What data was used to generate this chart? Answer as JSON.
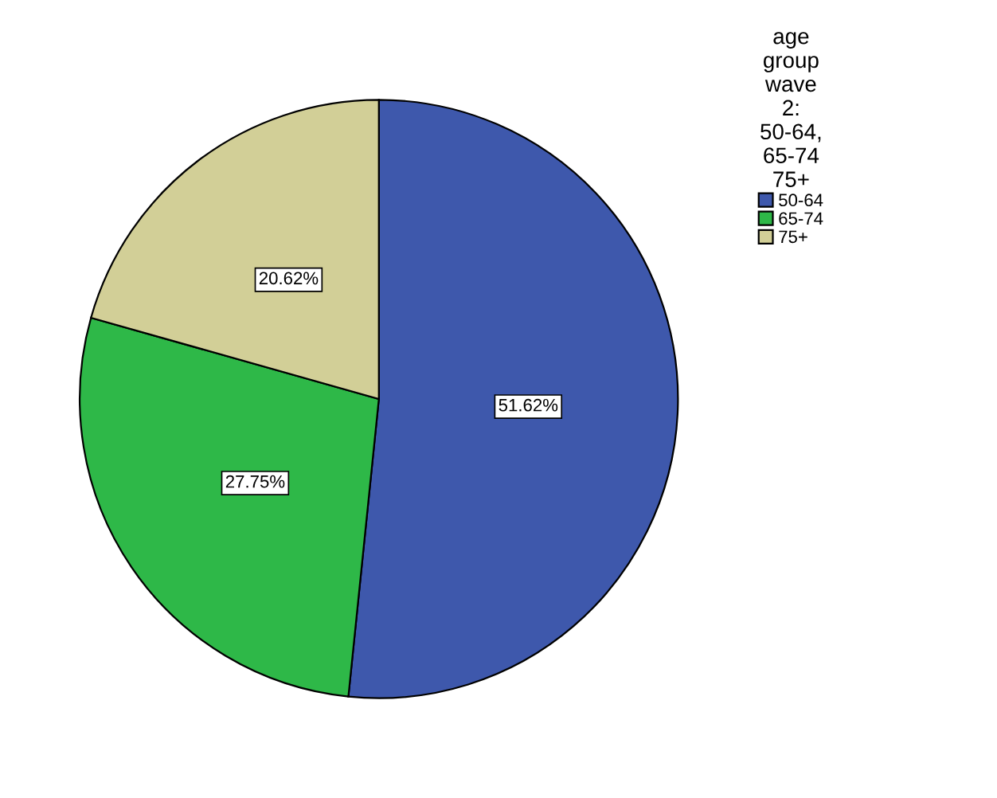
{
  "chart_data": {
    "type": "pie",
    "legend_title": "age group wave 2: 50-64, 65-74 75+",
    "categories": [
      "50-64",
      "65-74",
      "75+"
    ],
    "values": [
      51.62,
      27.75,
      20.62
    ],
    "colors": [
      "#3e58ac",
      "#2eb848",
      "#d2cf97"
    ],
    "value_labels": [
      "51.62%",
      "27.75%",
      "20.62%"
    ],
    "legend": "top right"
  }
}
